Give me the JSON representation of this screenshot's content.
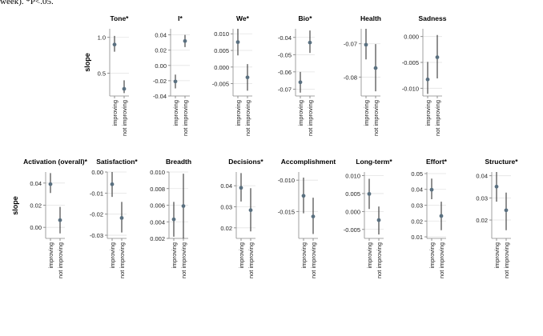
{
  "caption": "week). *P<.05.",
  "chart_data": {
    "type": "scatter",
    "errorbars": true,
    "ylabel": "slope",
    "categories": [
      "improving",
      "not improving"
    ],
    "point_color": "#5a7080",
    "grid": true,
    "panels": [
      {
        "title": "Tone*",
        "ticks": [
          1.0,
          0.5
        ],
        "tick_labels": [
          "1.0",
          "0.5"
        ],
        "ylim": [
          0.18,
          1.12
        ],
        "points": [
          {
            "y": 0.9,
            "lo": 0.8,
            "hi": 1.02
          },
          {
            "y": 0.28,
            "lo": 0.22,
            "hi": 0.4
          }
        ]
      },
      {
        "title": "I*",
        "ticks": [
          0.04,
          0.02,
          0.0,
          -0.02,
          -0.04
        ],
        "tick_labels": [
          "0.04",
          "0.02",
          "0.00",
          "-0.02",
          "-0.04"
        ],
        "ylim": [
          -0.04,
          0.048
        ],
        "points": [
          {
            "y": -0.021,
            "lo": -0.03,
            "hi": -0.012
          },
          {
            "y": 0.032,
            "lo": 0.024,
            "hi": 0.04
          }
        ]
      },
      {
        "title": "We*",
        "ticks": [
          0.01,
          0.005,
          0.0,
          -0.005
        ],
        "tick_labels": [
          "0.010",
          "0.005",
          "0.000",
          "-0.005"
        ],
        "ylim": [
          -0.0087,
          0.0115
        ],
        "points": [
          {
            "y": 0.0075,
            "lo": 0.0035,
            "hi": 0.0115
          },
          {
            "y": -0.0031,
            "lo": -0.0071,
            "hi": 0.0009
          }
        ]
      },
      {
        "title": "Bio*",
        "ticks": [
          -0.04,
          -0.05,
          -0.06,
          -0.07
        ],
        "tick_labels": [
          "-0.04",
          "-0.05",
          "-0.06",
          "-0.07"
        ],
        "ylim": [
          -0.074,
          -0.035
        ],
        "points": [
          {
            "y": -0.066,
            "lo": -0.072,
            "hi": -0.06
          },
          {
            "y": -0.043,
            "lo": -0.049,
            "hi": -0.036
          }
        ]
      },
      {
        "title": "Health",
        "ticks": [
          -0.07,
          -0.08
        ],
        "tick_labels": [
          "-0.07",
          "-0.08"
        ],
        "ylim": [
          -0.0857,
          -0.0655
        ],
        "points": [
          {
            "y": -0.0703,
            "lo": -0.0747,
            "hi": -0.0655
          },
          {
            "y": -0.0773,
            "lo": -0.0843,
            "hi": -0.0701
          }
        ]
      },
      {
        "title": "Sadness",
        "ticks": [
          0.0,
          -0.005,
          -0.01
        ],
        "tick_labels": [
          "0.000",
          "-0.005",
          "-0.010"
        ],
        "ylim": [
          -0.0115,
          0.0015
        ],
        "points": [
          {
            "y": -0.0083,
            "lo": -0.0111,
            "hi": -0.0049
          },
          {
            "y": -0.004,
            "lo": -0.0081,
            "hi": 0.0003
          }
        ]
      },
      {
        "title": "Activation (overall)*",
        "ticks": [
          0.04,
          0.02,
          0.0
        ],
        "tick_labels": [
          "0.04",
          "0.02",
          "0.00"
        ],
        "ylim": [
          -0.01,
          0.05
        ],
        "points": [
          {
            "y": 0.039,
            "lo": 0.031,
            "hi": 0.049
          },
          {
            "y": 0.0065,
            "lo": -0.0055,
            "hi": 0.0185
          }
        ]
      },
      {
        "title": "Satisfaction*",
        "ticks": [
          0.0,
          -0.01,
          -0.02,
          -0.03
        ],
        "tick_labels": [
          "0.00",
          "-0.01",
          "-0.02",
          "-0.03"
        ],
        "ylim": [
          -0.0315,
          0.0
        ],
        "points": [
          {
            "y": -0.0058,
            "lo": -0.0118,
            "hi": 0.0
          },
          {
            "y": -0.0218,
            "lo": -0.0287,
            "hi": -0.0142
          }
        ]
      },
      {
        "title": "Breadth",
        "ticks": [
          0.01,
          0.008,
          0.006,
          0.004,
          0.002
        ],
        "tick_labels": [
          "0.010",
          "0.008",
          "0.006",
          "0.004",
          "0.002"
        ],
        "ylim": [
          0.002,
          0.01
        ],
        "points": [
          {
            "y": 0.0043,
            "lo": 0.0022,
            "hi": 0.0064
          },
          {
            "y": 0.0059,
            "lo": 0.002,
            "hi": 0.0098
          }
        ]
      },
      {
        "title": "Decisions*",
        "ticks": [
          0.04,
          0.03,
          0.02
        ],
        "tick_labels": [
          "0.04",
          "0.03",
          "0.02"
        ],
        "ylim": [
          0.015,
          0.0465
        ],
        "points": [
          {
            "y": 0.039,
            "lo": 0.0325,
            "hi": 0.046
          },
          {
            "y": 0.0284,
            "lo": 0.0183,
            "hi": 0.0388
          }
        ]
      },
      {
        "title": "Accomplishment",
        "ticks": [
          -0.01,
          -0.015
        ],
        "tick_labels": [
          "-0.010",
          "-0.015"
        ],
        "ylim": [
          -0.0193,
          -0.0087
        ],
        "points": [
          {
            "y": -0.0125,
            "lo": -0.0153,
            "hi": -0.0096
          },
          {
            "y": -0.0158,
            "lo": -0.0186,
            "hi": -0.0128
          }
        ]
      },
      {
        "title": "Long-term*",
        "ticks": [
          0.01,
          0.005,
          0.0,
          -0.005
        ],
        "tick_labels": [
          "0.010",
          "0.005",
          "0.000",
          "-0.005"
        ],
        "ylim": [
          -0.0075,
          0.011
        ],
        "points": [
          {
            "y": 0.0049,
            "lo": 0.0007,
            "hi": 0.0091
          },
          {
            "y": -0.0024,
            "lo": -0.0064,
            "hi": 0.0014
          }
        ]
      },
      {
        "title": "Effort*",
        "ticks": [
          0.05,
          0.04,
          0.03,
          0.02,
          0.01
        ],
        "tick_labels": [
          "0.05",
          "0.04",
          "0.03",
          "0.02",
          "0.01"
        ],
        "ylim": [
          0.009,
          0.051
        ],
        "points": [
          {
            "y": 0.0398,
            "lo": 0.0338,
            "hi": 0.0468
          },
          {
            "y": 0.0232,
            "lo": 0.0142,
            "hi": 0.0322
          }
        ]
      },
      {
        "title": "Structure*",
        "ticks": [
          0.04,
          0.03,
          0.02
        ],
        "tick_labels": [
          "0.04",
          "0.03",
          "0.02"
        ],
        "ylim": [
          0.0117,
          0.0417
        ],
        "points": [
          {
            "y": 0.0351,
            "lo": 0.0283,
            "hi": 0.0417
          },
          {
            "y": 0.0244,
            "lo": 0.0154,
            "hi": 0.0324
          }
        ]
      }
    ]
  }
}
